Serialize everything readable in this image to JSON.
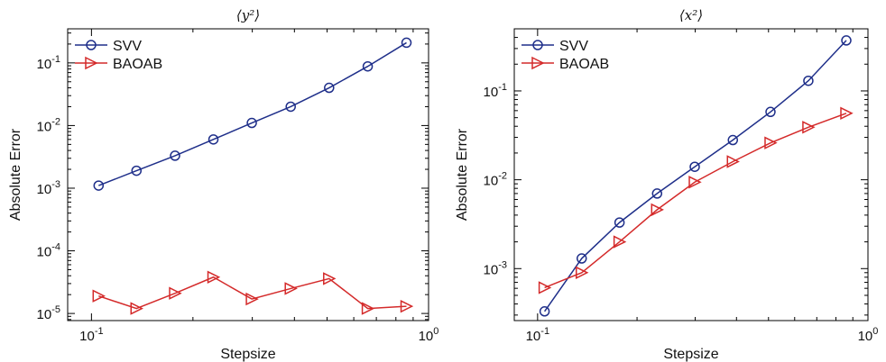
{
  "chart_data": [
    {
      "type": "line",
      "title": "⟨y²⟩",
      "xlabel": "Stepsize",
      "ylabel": "Absolute Error",
      "xscale": "log",
      "yscale": "log",
      "xlim": [
        0.085,
        1.0
      ],
      "ylim": [
        7.7e-06,
        0.35
      ],
      "x_ticks": [
        {
          "value": 0.1,
          "label": "10^-1"
        },
        {
          "value": 1.0,
          "label": "10^0"
        }
      ],
      "y_ticks": [
        {
          "value": 1e-05,
          "label": "10^-5"
        },
        {
          "value": 0.0001,
          "label": "10^-4"
        },
        {
          "value": 0.001,
          "label": "10^-3"
        },
        {
          "value": 0.01,
          "label": "10^-2"
        },
        {
          "value": 0.1,
          "label": "10^-1"
        }
      ],
      "legend_position": "top-left",
      "series": [
        {
          "name": "SVV",
          "color": "#1f2f8a",
          "marker": "circle",
          "x": [
            0.105,
            0.136,
            0.177,
            0.23,
            0.299,
            0.39,
            0.507,
            0.66,
            0.86
          ],
          "y": [
            0.0011,
            0.0019,
            0.0033,
            0.006,
            0.011,
            0.02,
            0.04,
            0.088,
            0.21
          ]
        },
        {
          "name": "BAOAB",
          "color": "#d42a2a",
          "marker": "triangle-right",
          "x": [
            0.105,
            0.136,
            0.177,
            0.23,
            0.299,
            0.39,
            0.507,
            0.66,
            0.86
          ],
          "y": [
            1.9e-05,
            1.2e-05,
            2.1e-05,
            3.8e-05,
            1.7e-05,
            2.5e-05,
            3.6e-05,
            1.2e-05,
            1.3e-05
          ]
        }
      ]
    },
    {
      "type": "line",
      "title": "⟨x²⟩",
      "xlabel": "Stepsize",
      "ylabel": "Absolute Error",
      "xscale": "log",
      "yscale": "log",
      "xlim": [
        0.085,
        1.0
      ],
      "ylim": [
        0.00026,
        0.5
      ],
      "x_ticks": [
        {
          "value": 0.1,
          "label": "10^-1"
        },
        {
          "value": 1.0,
          "label": "10^0"
        }
      ],
      "y_ticks": [
        {
          "value": 0.001,
          "label": "10^-3"
        },
        {
          "value": 0.01,
          "label": "10^-2"
        },
        {
          "value": 0.1,
          "label": "10^-1"
        }
      ],
      "legend_position": "top-left",
      "series": [
        {
          "name": "SVV",
          "color": "#1f2f8a",
          "marker": "circle",
          "x": [
            0.105,
            0.136,
            0.177,
            0.23,
            0.299,
            0.39,
            0.507,
            0.66,
            0.86
          ],
          "y": [
            0.00033,
            0.0013,
            0.0033,
            0.007,
            0.014,
            0.028,
            0.058,
            0.13,
            0.37
          ]
        },
        {
          "name": "BAOAB",
          "color": "#d42a2a",
          "marker": "triangle-right",
          "x": [
            0.105,
            0.136,
            0.177,
            0.23,
            0.299,
            0.39,
            0.507,
            0.66,
            0.86
          ],
          "y": [
            0.00061,
            0.0009,
            0.002,
            0.0046,
            0.0094,
            0.016,
            0.026,
            0.039,
            0.056
          ]
        }
      ]
    }
  ]
}
